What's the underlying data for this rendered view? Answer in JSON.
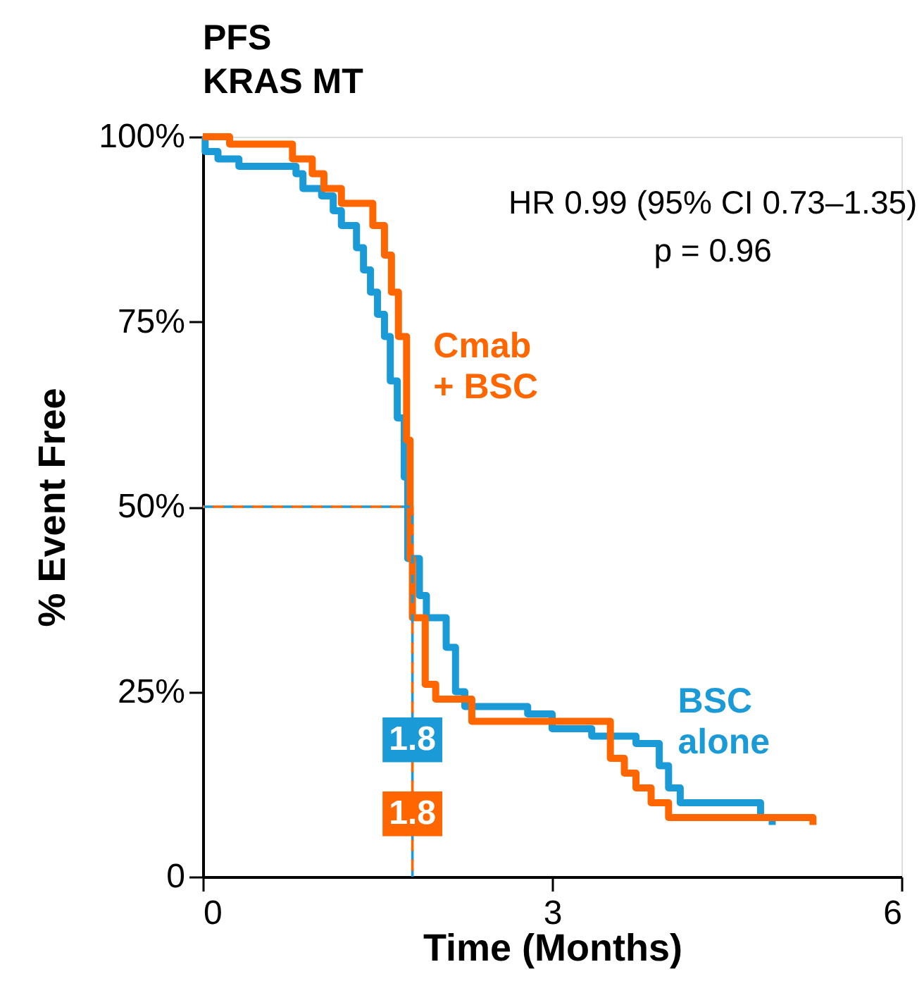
{
  "chart_data": {
    "type": "step",
    "title": "PFS",
    "subtitle": "KRAS MT",
    "xlabel": "Time (Months)",
    "ylabel": "% Event Free",
    "xlim": [
      0,
      6
    ],
    "xticks": [
      0,
      3,
      6
    ],
    "ylim": [
      0,
      100
    ],
    "yticks": [
      {
        "value": 0,
        "label": "0"
      },
      {
        "value": 25,
        "label": "25%"
      },
      {
        "value": 50,
        "label": "50%"
      },
      {
        "value": 75,
        "label": "75%"
      },
      {
        "value": 100,
        "label": "100%"
      }
    ],
    "grid": false,
    "legend": false,
    "marker": "none",
    "annotations": [
      "HR 0.99 (95% CI 0.73–1.35)",
      "p = 0.96",
      {
        "text": "1.8",
        "x": 1.8
      },
      {
        "text": "1.8",
        "x": 1.8
      }
    ],
    "series": [
      {
        "name": "BSC\nalone",
        "color": "#1a9ad6",
        "type": "step",
        "x": [
          0,
          0.02,
          0.13,
          0.31,
          0.8,
          0.86,
          1.02,
          1.12,
          1.19,
          1.32,
          1.38,
          1.44,
          1.5,
          1.56,
          1.61,
          1.67,
          1.73,
          1.76,
          1.86,
          1.92,
          2.09,
          2.17,
          2.25,
          2.79,
          3.0,
          3.34,
          3.72,
          3.92,
          4.0,
          4.1,
          4.79,
          4.89
        ],
        "values": [
          100,
          98,
          97,
          96,
          95,
          93,
          92,
          90,
          88,
          85,
          82,
          79,
          76,
          73,
          67,
          62,
          54,
          43,
          38,
          35,
          31,
          25,
          23,
          22,
          20,
          19,
          18,
          15,
          12,
          10,
          8,
          7
        ]
      },
      {
        "name": "Cmab\n+ BSC",
        "color": "#ff6600",
        "type": "step",
        "x": [
          0,
          0.23,
          0.77,
          0.94,
          1.04,
          1.19,
          1.46,
          1.56,
          1.62,
          1.68,
          1.75,
          1.78,
          1.8,
          1.91,
          2.0,
          2.31,
          3.5,
          3.62,
          3.72,
          3.85,
          4.0,
          5.24
        ],
        "values": [
          100,
          99,
          97,
          95,
          93,
          91,
          88,
          84,
          79,
          73,
          59,
          43,
          35,
          26,
          24,
          21,
          16,
          14,
          12,
          10,
          8,
          7
        ]
      },
      {
        "color": "#1a9ad6",
        "type": "line",
        "line_style": "dashed",
        "x": [
          0,
          1.8,
          1.8
        ],
        "values": [
          50,
          50,
          0
        ]
      },
      {
        "color": "#ff6600",
        "type": "line",
        "line_style": "dashed",
        "x": [
          0,
          1.8,
          1.8
        ],
        "values": [
          50,
          50,
          0
        ]
      }
    ]
  }
}
